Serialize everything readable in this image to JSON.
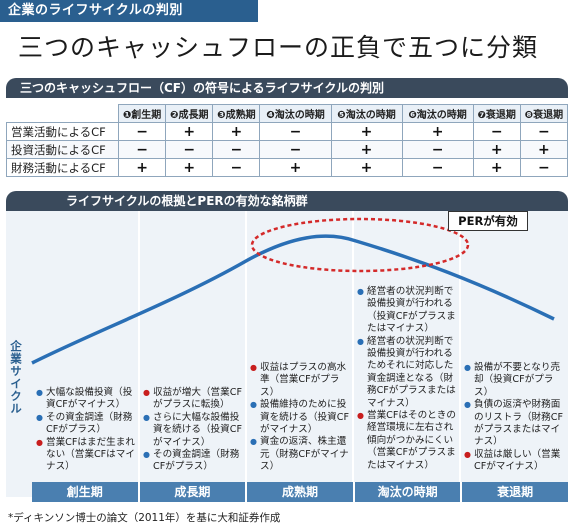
{
  "top_tag": "企業のライフサイクルの判別",
  "headline": "三つのキャッシュフローの正負で五つに分類",
  "table_bar": "三つのキャッシュフロー（CF）の符号によるライフサイクルの判別",
  "table": {
    "columns": [
      "❶創生期",
      "❷成長期",
      "❸成熟期",
      "❹淘汰の時期",
      "❺淘汰の時期",
      "❻淘汰の時期",
      "❼衰退期",
      "❽衰退期"
    ],
    "rows": [
      {
        "label": "営業活動によるCF",
        "signs": [
          "−",
          "+",
          "+",
          "−",
          "+",
          "+",
          "−",
          "−"
        ]
      },
      {
        "label": "投資活動によるCF",
        "signs": [
          "−",
          "−",
          "−",
          "−",
          "+",
          "−",
          "+",
          "+"
        ]
      },
      {
        "label": "財務活動によるCF",
        "signs": [
          "+",
          "+",
          "−",
          "+",
          "+",
          "−",
          "+",
          "−"
        ]
      }
    ]
  },
  "chart_bar": "ライフサイクルの根拠とPERの有効な銘柄群",
  "per_label": "PERが有効",
  "y_axis_label": "企業サイクル",
  "stages": [
    "創生期",
    "成長期",
    "成熟期",
    "淘汰の時期",
    "衰退期"
  ],
  "notes": {
    "sousei": [
      {
        "color": "blue",
        "text": "大幅な設備投資（投資CFがマイナス）"
      },
      {
        "color": "blue",
        "text": "その資金調達（財務CFがプラス）"
      },
      {
        "color": "red",
        "text": "営業CFはまだ生まれない（営業CFはマイナス）"
      }
    ],
    "seichou": [
      {
        "color": "red",
        "text": "収益が増大（営業CFがプラスに転換）"
      },
      {
        "color": "blue",
        "text": "さらに大幅な設備投資を続ける（投資CFがマイナス）"
      },
      {
        "color": "blue",
        "text": "その資金調達（財務CFがプラス）"
      }
    ],
    "seijuku": [
      {
        "color": "red",
        "text": "収益はプラスの高水準（営業CFがプラス）"
      },
      {
        "color": "blue",
        "text": "設備維持のために投資を続ける（投資CFがマイナス）"
      },
      {
        "color": "blue",
        "text": "資金の返済、株主還元（財務CFがマイナス）"
      }
    ],
    "touta": [
      {
        "color": "blue",
        "text": "経営者の状況判断で設備投資が行われる（投資CFがプラスまたはマイナス）"
      },
      {
        "color": "blue",
        "text": "経営者の状況判断で設備投資が行われるためそれに対応した資金調達となる（財務CFがプラスまたはマイナス）"
      },
      {
        "color": "red",
        "text": "営業CFはそのときの経営環境に左右され傾向がつかみにくい（営業CFがプラスまたはマイナス）"
      }
    ],
    "suitai": [
      {
        "color": "blue",
        "text": "設備が不要となり売却（投資CFがプラス）"
      },
      {
        "color": "blue",
        "text": "負債の返済や財務面のリストラ（財務CFがプラスまたはマイナス）"
      },
      {
        "color": "red",
        "text": "収益は厳しい（営業CFがマイナス）"
      }
    ]
  },
  "footnote": "*ディキンソン博士の論文（2011年）を基に大和証券作成",
  "colors": {
    "header_blue": "#2a5f8f",
    "bar_dark": "#3a4a5c",
    "stage_blue": "#4a7fb0",
    "curve_blue": "#2a6fb5",
    "ellipse_red": "#d42a2a",
    "chart_bg": "#eef3f8"
  }
}
